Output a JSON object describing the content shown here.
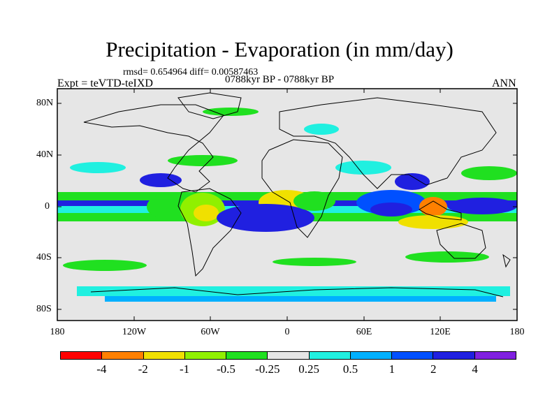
{
  "title": "Precipitation - Evaporation (in mm/day)",
  "stats": "rmsd= 0.654964 diff= 0.00587463",
  "experiment": "Expt = teVTD-teIXD",
  "period": "0788kyr BP - 0788kyr BP",
  "season": "ANN",
  "lat_ticks": [
    "80N",
    "40N",
    "0",
    "40S",
    "80S"
  ],
  "lon_ticks": [
    "180",
    "120W",
    "60W",
    "0",
    "60E",
    "120E",
    "180"
  ],
  "colorbar": {
    "labels": [
      "-4",
      "-2",
      "-1",
      "-0.5",
      "-0.25",
      "0.25",
      "0.5",
      "1",
      "2",
      "4"
    ],
    "colors": [
      "#ff0000",
      "#ff8000",
      "#f0e000",
      "#90f000",
      "#20e020",
      "#e6e6e6",
      "#20f0e0",
      "#00b0ff",
      "#0050ff",
      "#2020e0",
      "#8020e0"
    ]
  },
  "map_colors": {
    "background": "#e6e6e6",
    "coast": "#000000"
  }
}
